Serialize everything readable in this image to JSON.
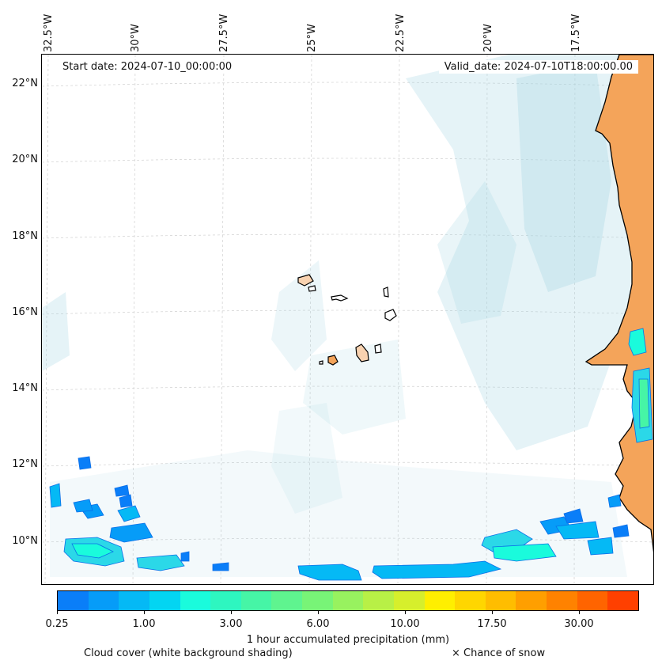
{
  "header": {
    "start_date": "Start date: 2024-07-10_00:00:00",
    "valid_date": "Valid_date: 2024-07-10T18:00:00.00"
  },
  "map": {
    "longitude_labels": [
      "32.5°W",
      "30°W",
      "27.5°W",
      "25°W",
      "22.5°W",
      "20°W",
      "17.5°W"
    ],
    "latitude_labels": [
      "22°N",
      "20°N",
      "18°N",
      "16°N",
      "14°N",
      "12°N",
      "10°N"
    ],
    "extent": {
      "lon_min": -32.6,
      "lon_max": -15.7,
      "lat_min": 8.9,
      "lat_max": 22.8
    },
    "colors": {
      "land": "#f4a45a",
      "coast": "#000000",
      "gridline": "#c8c8c8",
      "cloud": "#a9d6e3"
    }
  },
  "colorbar": {
    "tick_labels": [
      "0.25",
      "1.00",
      "3.00",
      "6.00",
      "10.00",
      "17.50",
      "30.00"
    ],
    "colors": [
      "#0a7ef8",
      "#069cf8",
      "#05b9f5",
      "#03d5f2",
      "#1afbdc",
      "#2ef6c0",
      "#46f5a6",
      "#5ff48f",
      "#78f477",
      "#98f25f",
      "#b8f046",
      "#d6ef2c",
      "#ffef00",
      "#ffd600",
      "#ffbd00",
      "#ff9f00",
      "#ff8200",
      "#ff6400",
      "#ff4000"
    ],
    "label": "1 hour accumulated precipitation (mm)"
  },
  "legend": {
    "cloud_note": "Cloud cover (white background shading)",
    "snow_note": "× Chance of snow"
  }
}
